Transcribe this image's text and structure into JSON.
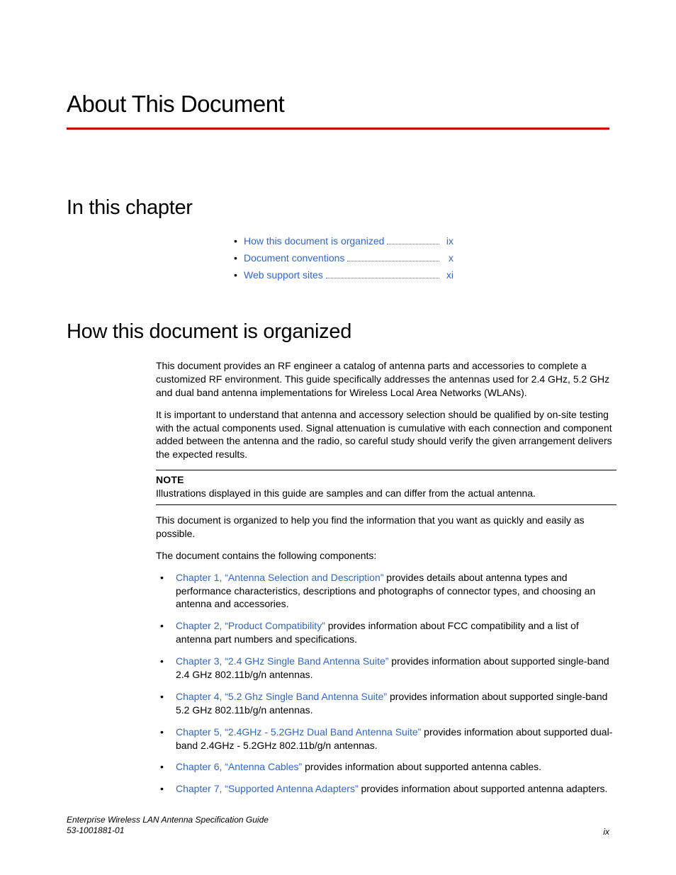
{
  "colors": {
    "rule": "#cc0000",
    "link": "#3366cc",
    "text": "#000000",
    "background": "#ffffff"
  },
  "typography": {
    "title_fontsize": 33,
    "section_fontsize": 29,
    "body_fontsize": 14,
    "footer_fontsize": 12,
    "heading_family": "Arial Narrow",
    "body_family": "Arial"
  },
  "title": "About This Document",
  "sections": {
    "in_this_chapter": {
      "heading": "In this chapter",
      "items": [
        {
          "label": "How this document is organized",
          "page": "ix"
        },
        {
          "label": "Document conventions",
          "page": "x"
        },
        {
          "label": "Web support sites",
          "page": "xi"
        }
      ]
    },
    "organized": {
      "heading": "How this document is organized",
      "para1": "This document provides an RF engineer a catalog of antenna parts and accessories to complete a customized RF environment. This guide specifically addresses the antennas used for 2.4 GHz, 5.2 GHz and dual band antenna implementations for Wireless Local Area Networks (WLANs).",
      "para2": "It is important to understand that antenna and accessory selection should be qualified by on-site testing with the actual components used. Signal attenuation is cumulative with each connection and component added between the antenna and the radio, so careful study should verify the given arrangement delivers the expected results.",
      "note_label": "NOTE",
      "note_text": "Illustrations displayed in this guide are samples and can differ from the actual antenna.",
      "para3": "This document is organized to help you find the information that you want as quickly and easily as possible.",
      "para4": "The document contains the following components:",
      "components": [
        {
          "link": "Chapter 1, “Antenna Selection and Description”",
          "rest": " provides details about antenna types and performance characteristics, descriptions and photographs of connector types, and choosing an antenna and accessories."
        },
        {
          "link": "Chapter 2, “Product Compatibility”",
          "rest": " provides information about FCC compatibility and a list of antenna part numbers and specifications."
        },
        {
          "link": "Chapter 3, “2.4 GHz Single Band Antenna Suite”",
          "rest": " provides information about supported single-band 2.4 GHz 802.11b/g/n antennas."
        },
        {
          "link": "Chapter 4, “5.2 Ghz Single Band Antenna Suite”",
          "rest": " provides information about supported single-band 5.2 GHz 802.11b/g/n antennas."
        },
        {
          "link": "Chapter 5, “2.4GHz - 5.2GHz Dual Band Antenna Suite”",
          "rest": " provides information about supported dual-band 2.4GHz - 5.2GHz 802.11b/g/n antennas."
        },
        {
          "link": "Chapter 6, “Antenna Cables”",
          "rest": " provides information about supported antenna cables."
        },
        {
          "link": "Chapter 7, “Supported Antenna Adapters”",
          "rest": " provides information about supported antenna adapters."
        }
      ]
    }
  },
  "footer": {
    "title": "Enterprise Wireless LAN Antenna Specification Guide",
    "docnum": "53-1001881-01",
    "page": "ix"
  }
}
